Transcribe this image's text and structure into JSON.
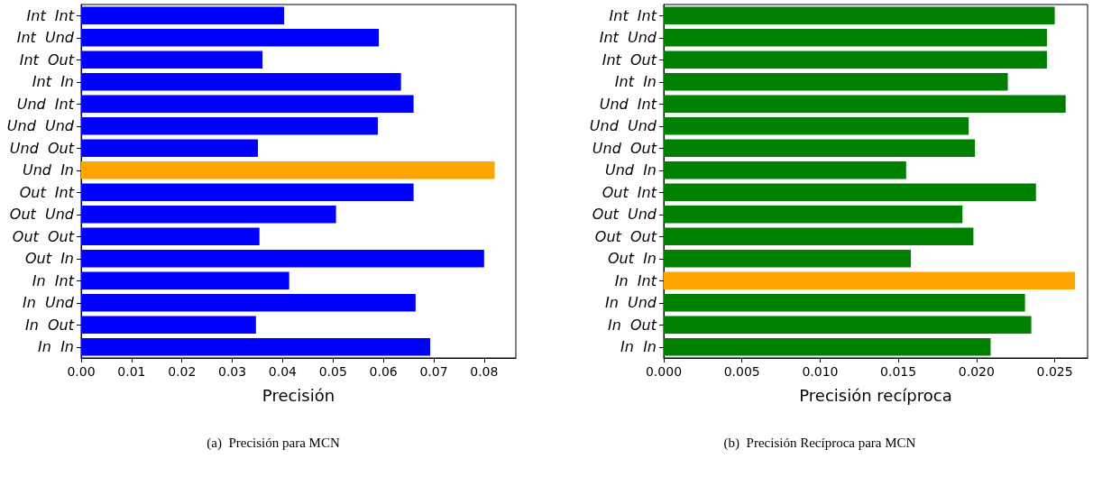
{
  "chart_data": [
    {
      "type": "bar",
      "orientation": "horizontal",
      "title": "(a)  Precisión para MCN",
      "xlabel": "Precisión",
      "categories": [
        "Int  Int",
        "Int  Und",
        "Int  Out",
        "Int  In",
        "Und  Int",
        "Und  Und",
        "Und  Out",
        "Und  In",
        "Out  Int",
        "Out  Und",
        "Out  Out",
        "Out  In",
        "In  Int",
        "In  Und",
        "In  Out",
        "In  In"
      ],
      "values": [
        0.0403,
        0.0591,
        0.036,
        0.0635,
        0.066,
        0.0589,
        0.0351,
        0.0821,
        0.066,
        0.0506,
        0.0354,
        0.08,
        0.0413,
        0.0664,
        0.0347,
        0.0693
      ],
      "colors": [
        "#0000ff",
        "#0000ff",
        "#0000ff",
        "#0000ff",
        "#0000ff",
        "#0000ff",
        "#0000ff",
        "#ffa500",
        "#0000ff",
        "#0000ff",
        "#0000ff",
        "#0000ff",
        "#0000ff",
        "#0000ff",
        "#0000ff",
        "#0000ff"
      ],
      "xlim": [
        0,
        0.0863
      ],
      "xticks": [
        {
          "value": 0,
          "label": "0.00"
        },
        {
          "value": 0.01,
          "label": "0.01"
        },
        {
          "value": 0.02,
          "label": "0.02"
        },
        {
          "value": 0.03,
          "label": "0.03"
        },
        {
          "value": 0.04,
          "label": "0.04"
        },
        {
          "value": 0.05,
          "label": "0.05"
        },
        {
          "value": 0.06,
          "label": "0.06"
        },
        {
          "value": 0.07,
          "label": "0.07"
        },
        {
          "value": 0.08,
          "label": "0.08"
        }
      ],
      "grid": false
    },
    {
      "type": "bar",
      "orientation": "horizontal",
      "title": "(b)  Precisión Recíproca para MCN",
      "xlabel": "Precisión recíproca",
      "categories": [
        "Int  Int",
        "Int  Und",
        "Int  Out",
        "Int  In",
        "Und  Int",
        "Und  Und",
        "Und  Out",
        "Und  In",
        "Out  Int",
        "Out  Und",
        "Out  Out",
        "Out  In",
        "In  Int",
        "In  Und",
        "In  Out",
        "In  In"
      ],
      "values": [
        0.025,
        0.0245,
        0.0245,
        0.022,
        0.0257,
        0.0195,
        0.0199,
        0.0155,
        0.0238,
        0.0191,
        0.0198,
        0.0158,
        0.0263,
        0.0231,
        0.0235,
        0.0209
      ],
      "colors": [
        "#008000",
        "#008000",
        "#008000",
        "#008000",
        "#008000",
        "#008000",
        "#008000",
        "#008000",
        "#008000",
        "#008000",
        "#008000",
        "#008000",
        "#ffa500",
        "#008000",
        "#008000",
        "#008000"
      ],
      "xlim": [
        0,
        0.0271
      ],
      "xticks": [
        {
          "value": 0,
          "label": "0.000"
        },
        {
          "value": 0.005,
          "label": "0.005"
        },
        {
          "value": 0.01,
          "label": "0.010"
        },
        {
          "value": 0.015,
          "label": "0.015"
        },
        {
          "value": 0.02,
          "label": "0.020"
        },
        {
          "value": 0.025,
          "label": "0.025"
        }
      ],
      "grid": false
    }
  ]
}
